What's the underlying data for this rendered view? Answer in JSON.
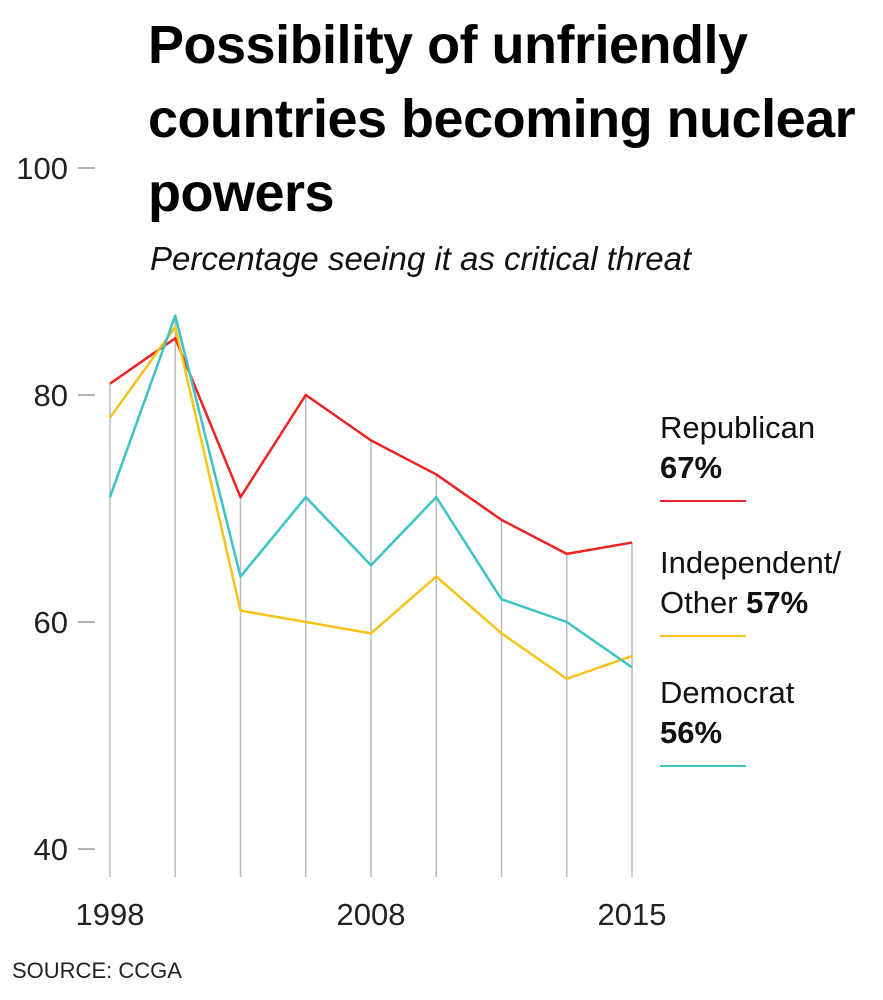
{
  "chart_data": {
    "type": "line",
    "title": "Possibility of unfriendly countries becoming nuclear powers",
    "subtitle": "Percentage seeing it as critical threat",
    "source": "SOURCE: CCGA",
    "categories": [
      "1998",
      null,
      null,
      null,
      "2008",
      null,
      null,
      null,
      "2015"
    ],
    "ylim": [
      40,
      100
    ],
    "yticks": [
      40,
      60,
      80,
      100
    ],
    "series": [
      {
        "name": "Republican",
        "color": "#ee2222",
        "values": [
          81,
          85,
          71,
          80,
          76,
          73,
          69,
          66,
          67
        ],
        "value_labels": [
          null,
          null,
          null,
          null,
          null,
          null,
          null,
          null,
          "67%"
        ]
      },
      {
        "name": "Independent/ Other",
        "color": "#f5c31a",
        "values": [
          78,
          86,
          61,
          60,
          59,
          64,
          59,
          55,
          57
        ],
        "value_labels": [
          null,
          null,
          null,
          null,
          null,
          null,
          null,
          null,
          "57%"
        ]
      },
      {
        "name": "Democrat",
        "color": "#3cc4c4",
        "values": [
          71,
          87,
          64,
          71,
          65,
          71,
          62,
          60,
          56
        ],
        "value_labels": [
          null,
          null,
          null,
          null,
          null,
          null,
          null,
          null,
          "56%"
        ]
      }
    ]
  }
}
